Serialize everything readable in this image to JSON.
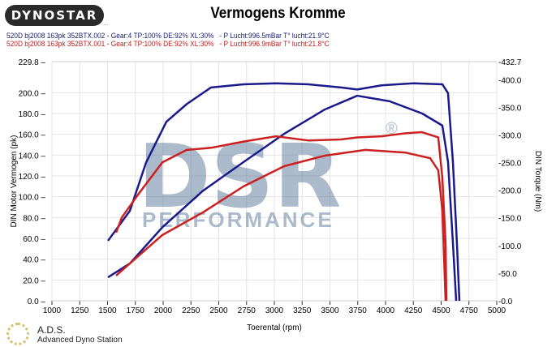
{
  "header": {
    "logo": "DYNOSTAR",
    "logo_sub": "...",
    "title": "Vermogens Kromme",
    "runs": [
      "520D bj2008 163pk 352BTX.002 - Gear:4 TP:100% DE:92% XL:30%   - P Lucht:996.5mBar T° lucht:21.9°C",
      "520D bj2008 163pk 352BTX.001 - Gear:4 TP:100% DE:92% XL:30%   - P Lucht:996.9mBar T° lucht:21.8°C"
    ]
  },
  "footer": {
    "name": "A.D.S.",
    "subtitle": "Advanced Dyno Station"
  },
  "watermark": {
    "text": "DSR",
    "sub": "PERFORMANCE",
    "mark": "®"
  },
  "colors": {
    "run1": "#1a1a8c",
    "run2": "#cc2020"
  },
  "chart_data": {
    "type": "line",
    "title": "Vermogens Kromme",
    "xlabel": "Toerental (rpm)",
    "ylabel": "DIN Motor Vermogen (pk)",
    "y2label": "DIN Torque (Nm)",
    "xlim": [
      1000,
      5000
    ],
    "ylim": [
      0,
      229.8
    ],
    "y2lim": [
      0,
      432.7
    ],
    "grid": true,
    "xticks": [
      "1000",
      "1250",
      "1500",
      "1750",
      "2000",
      "2250",
      "2500",
      "2750",
      "3000",
      "3250",
      "3500",
      "3750",
      "4000",
      "4250",
      "4500",
      "4750",
      "5000"
    ],
    "yticks": [
      "0.0",
      "20.0",
      "40.0",
      "60.0",
      "80.0",
      "100.0",
      "120.0",
      "140.0",
      "160.0",
      "180.0",
      "200.0"
    ],
    "ytop": "229.8",
    "y2ticks": [
      "-0.0",
      "-50.0",
      "-100.0",
      "-150.0",
      "-200.0",
      "-250.0",
      "-300.0",
      "-350.0",
      "-400.0"
    ],
    "y2top": "-432.7",
    "series": [
      {
        "name": "352BTX.002 power",
        "run": 1,
        "axis": "y",
        "points": [
          [
            1504,
            57.7
          ],
          [
            1701,
            86.5
          ],
          [
            1847,
            133
          ],
          [
            2029,
            172
          ],
          [
            2212,
            189
          ],
          [
            2431,
            205
          ],
          [
            2723,
            208
          ],
          [
            3015,
            209
          ],
          [
            3307,
            208
          ],
          [
            3599,
            205
          ],
          [
            3745,
            203
          ],
          [
            3964,
            207
          ],
          [
            4255,
            209
          ],
          [
            4511,
            208
          ],
          [
            4562,
            199.5
          ],
          [
            4606,
            133
          ],
          [
            4642,
            55
          ],
          [
            4664,
            0
          ]
        ]
      },
      {
        "name": "352BTX.002 torque",
        "run": 1,
        "axis": "y2",
        "points": [
          [
            1504,
            42.5
          ],
          [
            1701,
            67.5
          ],
          [
            1993,
            133
          ],
          [
            2358,
            199
          ],
          [
            2723,
            251
          ],
          [
            3088,
            302
          ],
          [
            3453,
            346
          ],
          [
            3745,
            371
          ],
          [
            4036,
            361
          ],
          [
            4328,
            339
          ],
          [
            4511,
            317
          ],
          [
            4562,
            251
          ],
          [
            4606,
            104
          ],
          [
            4635,
            0
          ]
        ]
      },
      {
        "name": "352BTX.001 power",
        "run": 2,
        "axis": "y",
        "points": [
          [
            1577,
            65.5
          ],
          [
            1628,
            80
          ],
          [
            1774,
            102
          ],
          [
            1993,
            133
          ],
          [
            2212,
            145
          ],
          [
            2431,
            147
          ],
          [
            2723,
            153
          ],
          [
            3015,
            158
          ],
          [
            3307,
            154
          ],
          [
            3599,
            155
          ],
          [
            3745,
            157
          ],
          [
            3964,
            158
          ],
          [
            4182,
            161
          ],
          [
            4328,
            162
          ],
          [
            4474,
            157
          ],
          [
            4511,
            118
          ],
          [
            4540,
            55
          ],
          [
            4547,
            0
          ]
        ]
      },
      {
        "name": "352BTX.001 torque",
        "run": 2,
        "axis": "y2",
        "points": [
          [
            1577,
            45.5
          ],
          [
            1701,
            67.5
          ],
          [
            1993,
            119
          ],
          [
            2358,
            160
          ],
          [
            2723,
            207
          ],
          [
            3088,
            243.5
          ],
          [
            3453,
            262.5
          ],
          [
            3818,
            273
          ],
          [
            4182,
            268
          ],
          [
            4401,
            258
          ],
          [
            4474,
            236
          ],
          [
            4511,
            163
          ],
          [
            4540,
            0
          ]
        ]
      }
    ]
  }
}
